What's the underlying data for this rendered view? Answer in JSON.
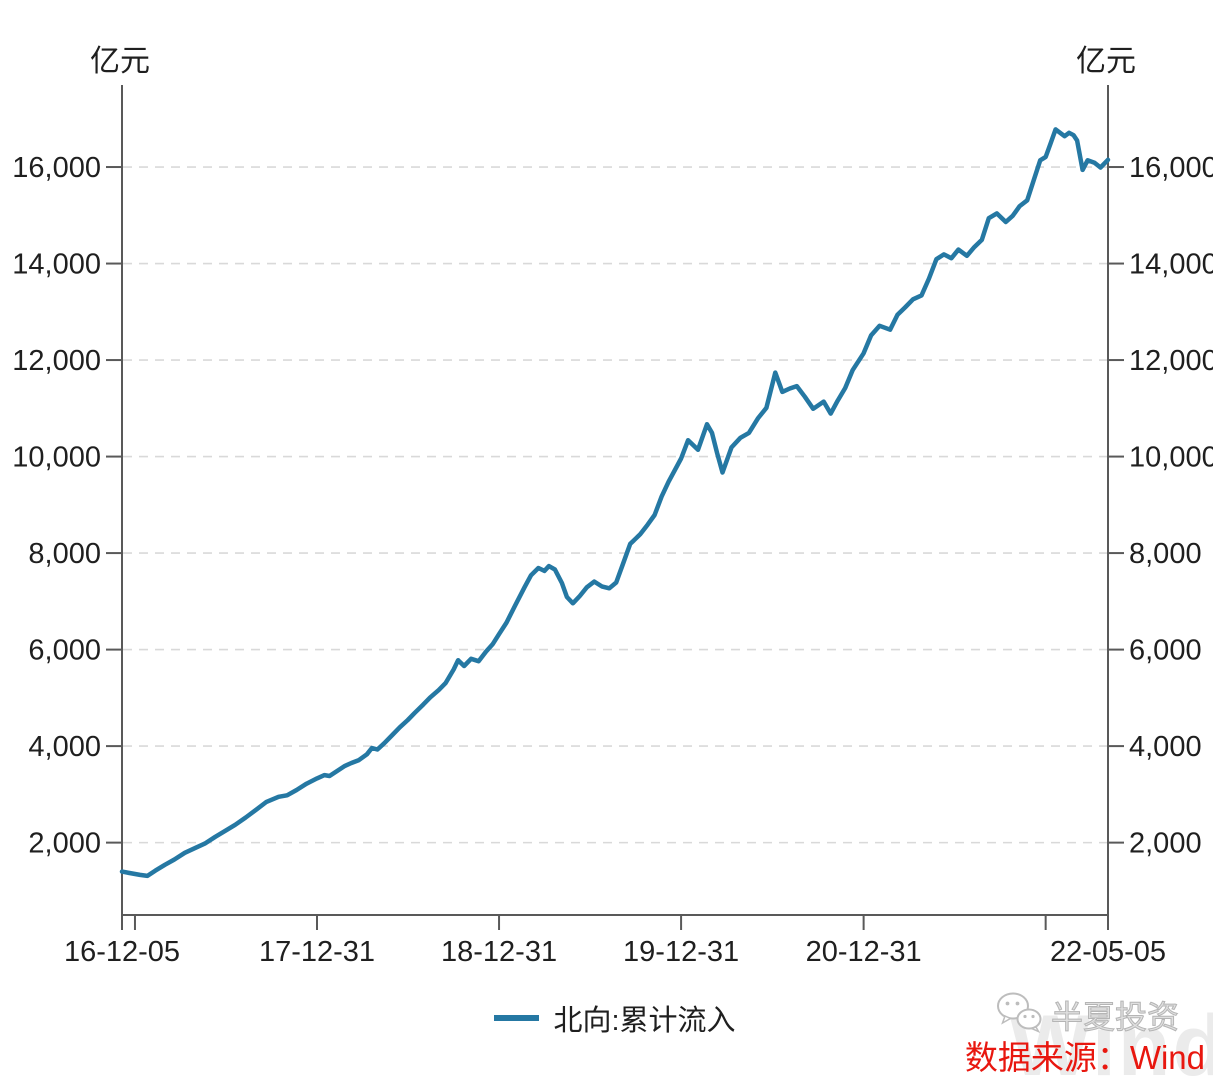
{
  "footer": {
    "brand_text": "半夏投资",
    "source_text": "数据来源：Wind",
    "watermark_text": "Wind",
    "source_color": "#e8170f",
    "brand_icon": "wechat-icon"
  },
  "chart_data": {
    "type": "line",
    "title": "",
    "left_axis_title": "亿元",
    "right_axis_title": "亿元",
    "unit": "亿元",
    "grid": {
      "horizontal": true,
      "style": "dashed"
    },
    "legend_position": "bottom-center",
    "colors": {
      "line": "#2578a3",
      "axis": "#595959",
      "grid": "#d9d9d9",
      "label": "#1f1f1f"
    },
    "y_axis": {
      "ticks": [
        2000,
        4000,
        6000,
        8000,
        10000,
        12000,
        14000,
        16000
      ],
      "range": [
        500,
        17700
      ],
      "sides": "both",
      "format": "thousands-comma"
    },
    "x_axis": {
      "start": "16-12-05",
      "end": "22-05-05",
      "tick_dates": [
        "16-12-05",
        "16-12-31",
        "17-12-31",
        "18-12-31",
        "19-12-31",
        "20-12-31",
        "21-12-31",
        "22-05-05"
      ],
      "labeled_ticks": [
        "16-12-05",
        "17-12-31",
        "18-12-31",
        "19-12-31",
        "20-12-31",
        "22-05-05"
      ]
    },
    "series": [
      {
        "name": "北向:累计流入",
        "color": "#2578a3",
        "x": [
          "16-12-05",
          "16-12-20",
          "17-01-10",
          "17-01-25",
          "17-02-10",
          "17-03-01",
          "17-03-20",
          "17-04-10",
          "17-05-01",
          "17-05-20",
          "17-06-10",
          "17-07-01",
          "17-07-20",
          "17-08-10",
          "17-09-01",
          "17-09-20",
          "17-10-15",
          "17-11-01",
          "17-11-20",
          "17-12-10",
          "17-12-31",
          "18-01-15",
          "18-01-25",
          "18-02-10",
          "18-02-25",
          "18-03-10",
          "18-03-25",
          "18-04-10",
          "18-04-20",
          "18-05-01",
          "18-05-15",
          "18-06-01",
          "18-06-15",
          "18-07-01",
          "18-07-15",
          "18-08-01",
          "18-08-15",
          "18-09-01",
          "18-09-15",
          "18-10-01",
          "18-10-10",
          "18-10-22",
          "18-11-05",
          "18-11-20",
          "18-12-05",
          "18-12-18",
          "18-12-31",
          "19-01-15",
          "19-02-01",
          "19-02-20",
          "19-03-05",
          "19-03-20",
          "19-04-01",
          "19-04-10",
          "19-04-22",
          "19-05-06",
          "19-05-16",
          "19-05-28",
          "19-06-11",
          "19-06-25",
          "19-07-10",
          "19-07-25",
          "19-08-09",
          "19-08-23",
          "19-09-05",
          "19-09-20",
          "19-10-10",
          "19-10-25",
          "19-11-08",
          "19-11-22",
          "19-12-06",
          "19-12-31",
          "20-01-14",
          "20-02-03",
          "20-02-21",
          "20-03-02",
          "20-03-12",
          "20-03-23",
          "20-04-10",
          "20-04-28",
          "20-05-15",
          "20-06-02",
          "20-06-19",
          "20-07-07",
          "20-07-21",
          "20-08-05",
          "20-08-19",
          "20-09-04",
          "20-09-21",
          "20-10-12",
          "20-10-26",
          "20-11-09",
          "20-11-24",
          "20-12-09",
          "20-12-31",
          "21-01-15",
          "21-02-01",
          "21-02-22",
          "21-03-09",
          "21-03-24",
          "21-04-09",
          "21-04-26",
          "21-05-11",
          "21-05-26",
          "21-06-10",
          "21-06-25",
          "21-07-09",
          "21-07-26",
          "21-08-10",
          "21-08-25",
          "21-09-08",
          "21-09-24",
          "21-10-12",
          "21-10-26",
          "21-11-09",
          "21-11-24",
          "21-12-09",
          "21-12-20",
          "21-12-31",
          "22-01-10",
          "22-01-20",
          "22-02-07",
          "22-02-16",
          "22-02-25",
          "22-03-04",
          "22-03-15",
          "22-03-25",
          "22-04-08",
          "22-04-20",
          "22-05-05"
        ],
        "values": [
          1400,
          1370,
          1330,
          1310,
          1420,
          1540,
          1650,
          1790,
          1890,
          1980,
          2120,
          2250,
          2370,
          2520,
          2690,
          2840,
          2950,
          2980,
          3090,
          3220,
          3330,
          3400,
          3380,
          3490,
          3590,
          3650,
          3710,
          3830,
          3960,
          3930,
          4060,
          4240,
          4390,
          4540,
          4690,
          4860,
          5010,
          5160,
          5310,
          5590,
          5780,
          5660,
          5810,
          5760,
          5960,
          6110,
          6320,
          6560,
          6910,
          7290,
          7540,
          7690,
          7630,
          7730,
          7660,
          7380,
          7090,
          6960,
          7110,
          7290,
          7410,
          7310,
          7270,
          7390,
          7760,
          8190,
          8390,
          8590,
          8790,
          9170,
          9480,
          9960,
          10340,
          10140,
          10670,
          10490,
          10080,
          9670,
          10190,
          10390,
          10490,
          10790,
          11010,
          11740,
          11340,
          11410,
          11460,
          11240,
          10990,
          11140,
          10890,
          11160,
          11420,
          11790,
          12140,
          12510,
          12710,
          12630,
          12940,
          13090,
          13260,
          13340,
          13690,
          14090,
          14190,
          14110,
          14290,
          14160,
          14340,
          14490,
          14940,
          15040,
          14860,
          14990,
          15190,
          15310,
          15790,
          16140,
          16210,
          16490,
          16780,
          16640,
          16710,
          16660,
          16550,
          15940,
          16140,
          16090,
          15990,
          16150
        ]
      }
    ]
  }
}
